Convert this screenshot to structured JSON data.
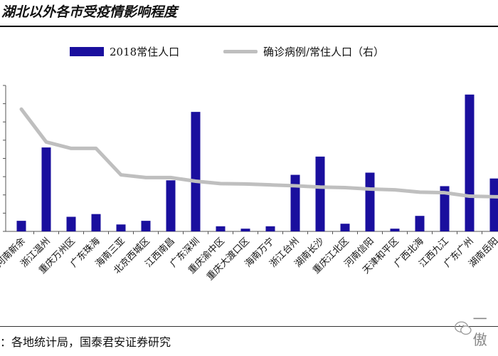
{
  "header": {
    "title": "湖北以外各市受疫情影响程度"
  },
  "footer": {
    "source": "：各地统计局，国泰君安证券研究",
    "watermark_text": "一傲"
  },
  "colors": {
    "bar": "#1a0f9e",
    "line": "#bfbfbf"
  },
  "chart_data": {
    "type": "bar",
    "title": "湖北以外各市受疫情影响程度",
    "legend_position": "top",
    "categories": [
      "河南新余",
      "浙江温州",
      "重庆万州区",
      "广东珠海",
      "海南三亚",
      "北京西城区",
      "江西南昌",
      "广东深圳",
      "重庆渝中区",
      "重庆大渡口区",
      "海南万宁",
      "浙江台州",
      "湖南长沙",
      "重庆江北区",
      "河南信阳",
      "天津和平区",
      "广西北海",
      "江西九江",
      "广东广州",
      "湖南岳阳"
    ],
    "series": [
      {
        "name": "2018常住人口",
        "type": "bar",
        "axis": "left",
        "values": [
          58,
          460,
          80,
          95,
          38,
          58,
          280,
          655,
          28,
          15,
          28,
          310,
          410,
          42,
          322,
          15,
          85,
          248,
          750,
          290
        ]
      },
      {
        "name": "确诊病例/常住人口（右）",
        "type": "line",
        "axis": "right",
        "values": [
          670,
          490,
          455,
          455,
          310,
          295,
          295,
          275,
          262,
          260,
          255,
          250,
          243,
          240,
          232,
          228,
          215,
          212,
          193,
          190
        ]
      }
    ],
    "ylim_left": [
      0,
      800
    ],
    "ylim_right": [
      0,
      800
    ],
    "y_tick_labels_visible": false,
    "grid": false
  }
}
